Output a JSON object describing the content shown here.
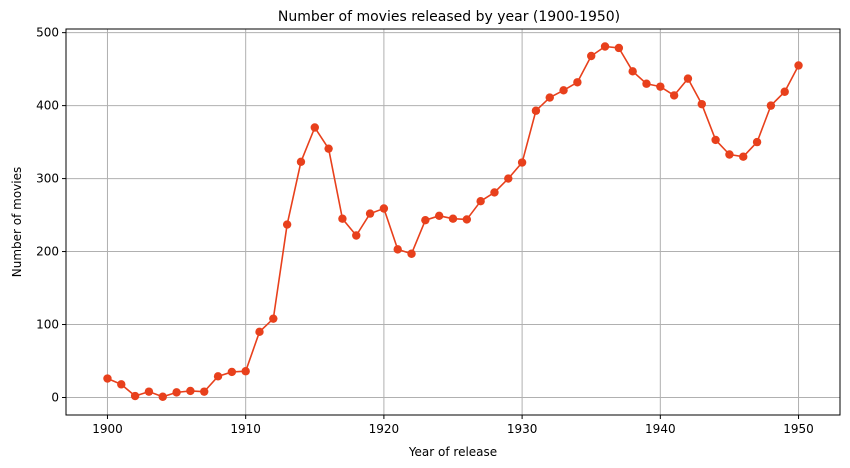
{
  "chart_data": {
    "type": "line",
    "title": "Number of movies released by year (1900-1950)",
    "xlabel": "Year of release",
    "ylabel": "Number of movies",
    "xlim": [
      1897,
      1953
    ],
    "ylim": [
      -24,
      505
    ],
    "x_ticks": [
      1900,
      1910,
      1920,
      1930,
      1940,
      1950
    ],
    "y_ticks": [
      0,
      100,
      200,
      300,
      400,
      500
    ],
    "grid": true,
    "marker": "circle",
    "color": "#e8401c",
    "series": [
      {
        "x": [
          1900,
          1901,
          1902,
          1903,
          1904,
          1905,
          1906,
          1907,
          1908,
          1909,
          1910,
          1911,
          1912,
          1913,
          1914,
          1915,
          1916,
          1917,
          1918,
          1919,
          1920,
          1921,
          1922,
          1923,
          1924,
          1925,
          1926,
          1927,
          1928,
          1929,
          1930,
          1931,
          1932,
          1933,
          1934,
          1935,
          1936,
          1937,
          1938,
          1939,
          1940,
          1941,
          1942,
          1943,
          1944,
          1945,
          1946,
          1947,
          1948,
          1949,
          1950
        ],
        "values": [
          26,
          18,
          2,
          8,
          1,
          7,
          9,
          8,
          29,
          35,
          36,
          90,
          108,
          237,
          323,
          370,
          341,
          245,
          222,
          252,
          259,
          203,
          197,
          243,
          249,
          245,
          244,
          269,
          281,
          300,
          322,
          393,
          411,
          421,
          432,
          468,
          481,
          479,
          447,
          430,
          426,
          414,
          437,
          402,
          353,
          333,
          330,
          350,
          400,
          419,
          455
        ]
      }
    ]
  }
}
